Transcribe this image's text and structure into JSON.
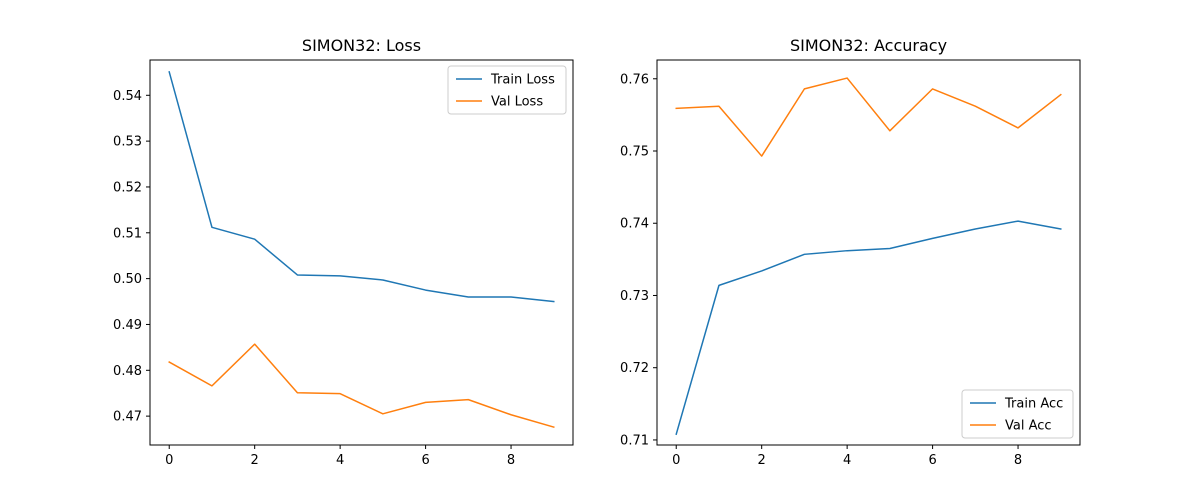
{
  "chart_data": [
    {
      "type": "line",
      "title": "SIMON32: Loss",
      "xlabel": "",
      "ylabel": "",
      "x": [
        0,
        1,
        2,
        3,
        4,
        5,
        6,
        7,
        8,
        9
      ],
      "xlim": [
        -0.45,
        9.45
      ],
      "ylim": [
        0.4637,
        0.5477
      ],
      "xticks": [
        0,
        2,
        4,
        6,
        8
      ],
      "yticks": [
        0.47,
        0.48,
        0.49,
        0.5,
        0.51,
        0.52,
        0.53,
        0.54
      ],
      "ytick_labels": [
        "0.47",
        "0.48",
        "0.49",
        "0.50",
        "0.51",
        "0.52",
        "0.53",
        "0.54"
      ],
      "legend_position": "top-right",
      "grid": false,
      "series": [
        {
          "name": "Train Loss",
          "color": "#1f77b4",
          "values": [
            0.5451,
            0.5112,
            0.5086,
            0.5008,
            0.5006,
            0.4997,
            0.4975,
            0.496,
            0.496,
            0.495
          ]
        },
        {
          "name": "Val Loss",
          "color": "#ff7f0e",
          "values": [
            0.4818,
            0.4766,
            0.4857,
            0.4751,
            0.4749,
            0.4705,
            0.473,
            0.4736,
            0.4703,
            0.4676
          ]
        }
      ]
    },
    {
      "type": "line",
      "title": "SIMON32: Accuracy",
      "xlabel": "",
      "ylabel": "",
      "x": [
        0,
        1,
        2,
        3,
        4,
        5,
        6,
        7,
        8,
        9
      ],
      "xlim": [
        -0.45,
        9.45
      ],
      "ylim": [
        0.7093,
        0.7626
      ],
      "xticks": [
        0,
        2,
        4,
        6,
        8
      ],
      "yticks": [
        0.71,
        0.72,
        0.73,
        0.74,
        0.75,
        0.76
      ],
      "ytick_labels": [
        "0.71",
        "0.72",
        "0.73",
        "0.74",
        "0.75",
        "0.76"
      ],
      "legend_position": "bottom-right",
      "grid": false,
      "series": [
        {
          "name": "Train Acc",
          "color": "#1f77b4",
          "values": [
            0.7108,
            0.7314,
            0.7334,
            0.7357,
            0.7362,
            0.7365,
            0.7379,
            0.7392,
            0.7403,
            0.7392
          ]
        },
        {
          "name": "Val Acc",
          "color": "#ff7f0e",
          "values": [
            0.7559,
            0.7562,
            0.7493,
            0.7586,
            0.7601,
            0.7528,
            0.7586,
            0.7562,
            0.7532,
            0.7578
          ]
        }
      ]
    }
  ]
}
